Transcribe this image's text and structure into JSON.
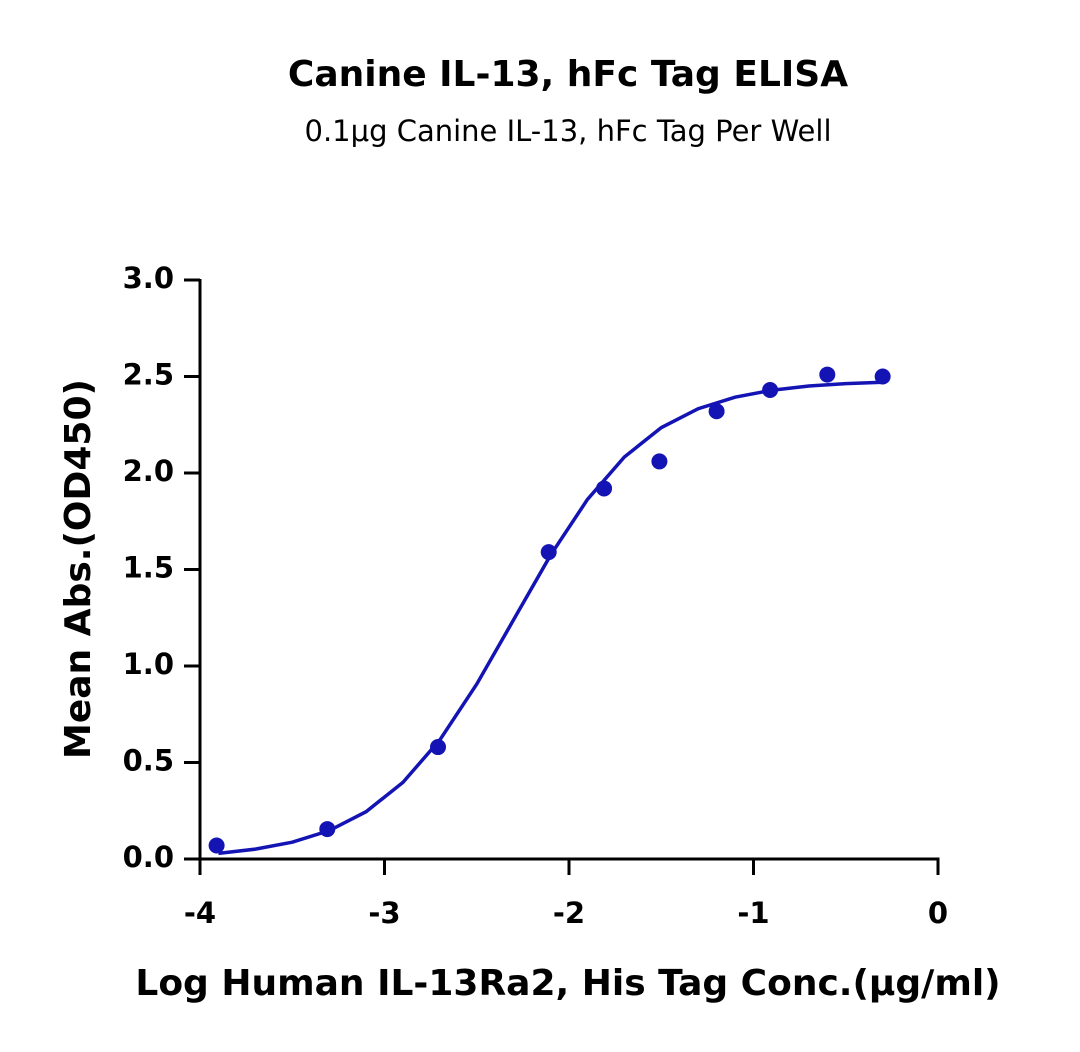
{
  "chart_data": {
    "type": "scatter",
    "title": "Canine IL-13, hFc Tag ELISA",
    "subtitle": "0.1μg Canine IL-13, hFc Tag Per Well",
    "x_label": "Log Human IL-13Ra2, His Tag Conc.(μg/ml)",
    "y_label": "Mean Abs.(OD450)",
    "xlim": [
      -4,
      0
    ],
    "xticks": [
      -4,
      -3,
      -2,
      -1,
      0
    ],
    "ylim": [
      0,
      3
    ],
    "yticks": [
      {
        "value": 0,
        "label": "0.0"
      },
      {
        "value": 0.5,
        "label": "0.5"
      },
      {
        "value": 1,
        "label": "1.0"
      },
      {
        "value": 1.5,
        "label": "1.5"
      },
      {
        "value": 2,
        "label": "2.0"
      },
      {
        "value": 2.5,
        "label": "2.5"
      },
      {
        "value": 3,
        "label": "3.0"
      }
    ],
    "series": [
      {
        "mode": "markers",
        "color": "#1414b4",
        "x": [
          -3.91,
          -3.31,
          -2.71,
          -2.11,
          -1.81,
          -1.51,
          -1.2,
          -0.91,
          -0.6,
          -0.3
        ],
        "values": [
          0.07,
          0.155,
          0.58,
          1.59,
          1.92,
          2.06,
          2.32,
          2.43,
          2.51,
          2.5
        ]
      },
      {
        "mode": "line",
        "color": "#1414b4",
        "x": [
          -3.9,
          -3.7,
          -3.5,
          -3.3,
          -3.1,
          -2.9,
          -2.7,
          -2.5,
          -2.3,
          -2.1,
          -1.9,
          -1.7,
          -1.5,
          -1.3,
          -1.1,
          -0.9,
          -0.7,
          -0.5,
          -0.3
        ],
        "values": [
          0.029,
          0.051,
          0.087,
          0.147,
          0.245,
          0.397,
          0.617,
          0.906,
          1.24,
          1.574,
          1.863,
          2.083,
          2.235,
          2.333,
          2.393,
          2.429,
          2.451,
          2.463,
          2.47
        ]
      }
    ]
  }
}
